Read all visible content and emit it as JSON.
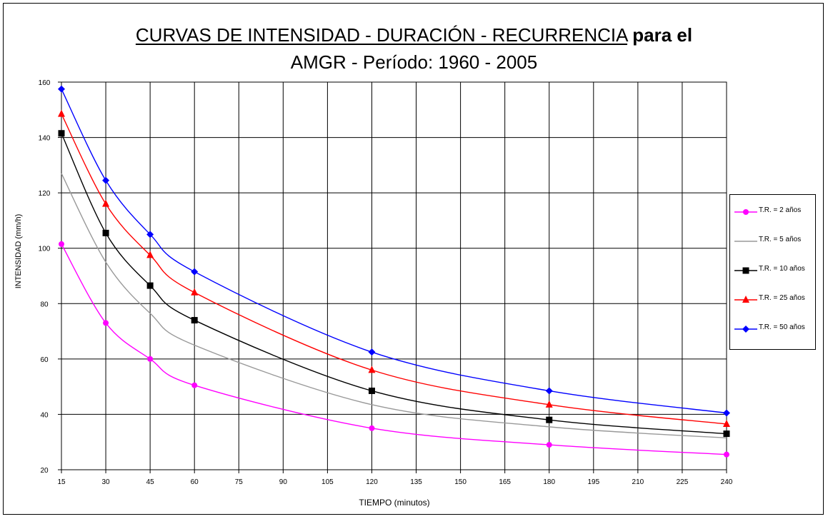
{
  "chart_data": {
    "type": "line",
    "title": "CURVAS DE INTENSIDAD - DURACIÓN - RECURRENCIA",
    "title_suffix": "para el",
    "subtitle": "AMGR - Período: 1960 - 2005",
    "xlabel": "TIEMPO (minutos)",
    "ylabel": "INTENSIDAD (mm/h)",
    "x_ticks": [
      "15",
      "30",
      "45",
      "60",
      "75",
      "90",
      "105",
      "120",
      "135",
      "150",
      "165",
      "180",
      "195",
      "210",
      "225",
      "240"
    ],
    "y_ticks": [
      "20",
      "40",
      "60",
      "80",
      "100",
      "120",
      "140",
      "160"
    ],
    "xlim": [
      15,
      240
    ],
    "ylim": [
      20,
      160
    ],
    "grid": true,
    "legend_position": "right",
    "series": [
      {
        "name": "T.R. = 2 años",
        "color": "#ff00ff",
        "marker": "circle",
        "x": [
          15,
          30,
          45,
          60,
          120,
          180,
          240
        ],
        "y": [
          101.5,
          73,
          60,
          50.5,
          35,
          29,
          25.5
        ]
      },
      {
        "name": "T.R. = 5 años",
        "color": "#999999",
        "marker": "none",
        "x": [
          15,
          30,
          45,
          60,
          120,
          180,
          240
        ],
        "y": [
          127,
          95,
          76.5,
          65,
          43.5,
          35.5,
          31.5
        ]
      },
      {
        "name": "T.R. = 10 años",
        "color": "#000000",
        "marker": "square",
        "x": [
          15,
          30,
          45,
          60,
          120,
          180,
          240
        ],
        "y": [
          141.5,
          105.5,
          86.5,
          74,
          48.5,
          38,
          33
        ]
      },
      {
        "name": "T.R. = 25 años",
        "color": "#ff0000",
        "marker": "triangle",
        "x": [
          15,
          30,
          45,
          60,
          120,
          180,
          240
        ],
        "y": [
          148.5,
          116,
          97.5,
          84,
          56,
          43.5,
          36.5
        ]
      },
      {
        "name": "T.R. = 50 años",
        "color": "#0000ff",
        "marker": "diamond",
        "x": [
          15,
          30,
          45,
          60,
          120,
          180,
          240
        ],
        "y": [
          157.5,
          124.5,
          105,
          91.5,
          62.5,
          48.5,
          40.5
        ]
      }
    ]
  }
}
